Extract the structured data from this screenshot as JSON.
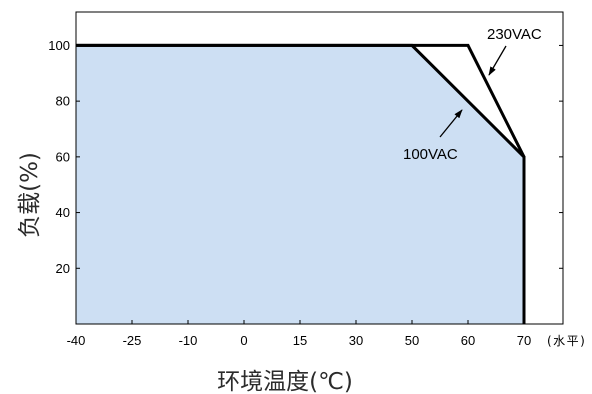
{
  "chart_data": {
    "type": "line",
    "xlabel": "环境温度(℃)",
    "x_tick_note": "(水平)",
    "ylabel": "负载(%)",
    "x_ticks": [
      -40,
      -25,
      -10,
      0,
      15,
      30,
      50,
      60,
      70
    ],
    "y_ticks": [
      20,
      40,
      60,
      80,
      100
    ],
    "ylim": [
      0,
      112
    ],
    "grid": false,
    "series": [
      {
        "name": "230VAC",
        "x": [
          -40,
          60,
          70,
          70
        ],
        "y": [
          100,
          100,
          60,
          0
        ],
        "fill_under": false
      },
      {
        "name": "100VAC",
        "x": [
          -40,
          50,
          70,
          70
        ],
        "y": [
          100,
          100,
          60,
          0
        ],
        "fill_under": true
      }
    ],
    "colors": {
      "fill": "#cddff3",
      "line": "#000000",
      "frame": "#000000"
    }
  }
}
